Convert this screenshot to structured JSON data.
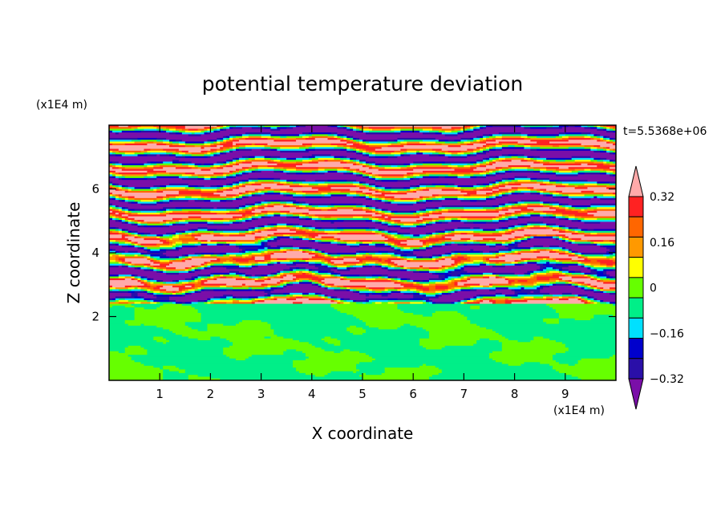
{
  "chart_data": {
    "type": "heatmap",
    "title": "potential temperature deviation",
    "xlabel": "X coordinate",
    "ylabel": "Z coordinate",
    "x_unit": "(x1E4 m)",
    "y_unit": "(x1E4 m)",
    "time_label": "t=5.5368e+06",
    "xlim": [
      0,
      10
    ],
    "ylim": [
      0,
      8
    ],
    "x_ticks": [
      1,
      2,
      3,
      4,
      5,
      6,
      7,
      8,
      9
    ],
    "y_ticks": [
      2,
      4,
      6
    ],
    "grid": false,
    "legend_position": "right",
    "colorbar": {
      "min": -0.4,
      "max": 0.4,
      "levels": [
        -0.4,
        -0.32,
        -0.24,
        -0.16,
        -0.08,
        0,
        0.08,
        0.16,
        0.24,
        0.32,
        0.4
      ],
      "tick_values": [
        0.32,
        0.16,
        0,
        -0.16,
        -0.32
      ],
      "tick_labels": [
        "0.32",
        "0.16",
        "0",
        "−0.16",
        "−0.32"
      ],
      "colors": [
        "#7a0fa8",
        "#2a0fa8",
        "#0000cc",
        "#00e0ff",
        "#00ef88",
        "#66ff00",
        "#ffff00",
        "#ff9900",
        "#ff6600",
        "#ff2222",
        "#ffaaaa"
      ]
    },
    "field_regions": [
      {
        "z_from": 0,
        "z_to": 2.4,
        "pattern": "mixed",
        "values": [
          0.02,
          -0.05
        ]
      },
      {
        "z_from": 2.4,
        "z_to": 4.5,
        "pattern": "turbulent-bands",
        "values": [
          0.4,
          -0.4
        ]
      },
      {
        "z_from": 4.5,
        "z_to": 8,
        "pattern": "alternating-bands",
        "values": [
          0.4,
          -0.4
        ]
      }
    ]
  }
}
